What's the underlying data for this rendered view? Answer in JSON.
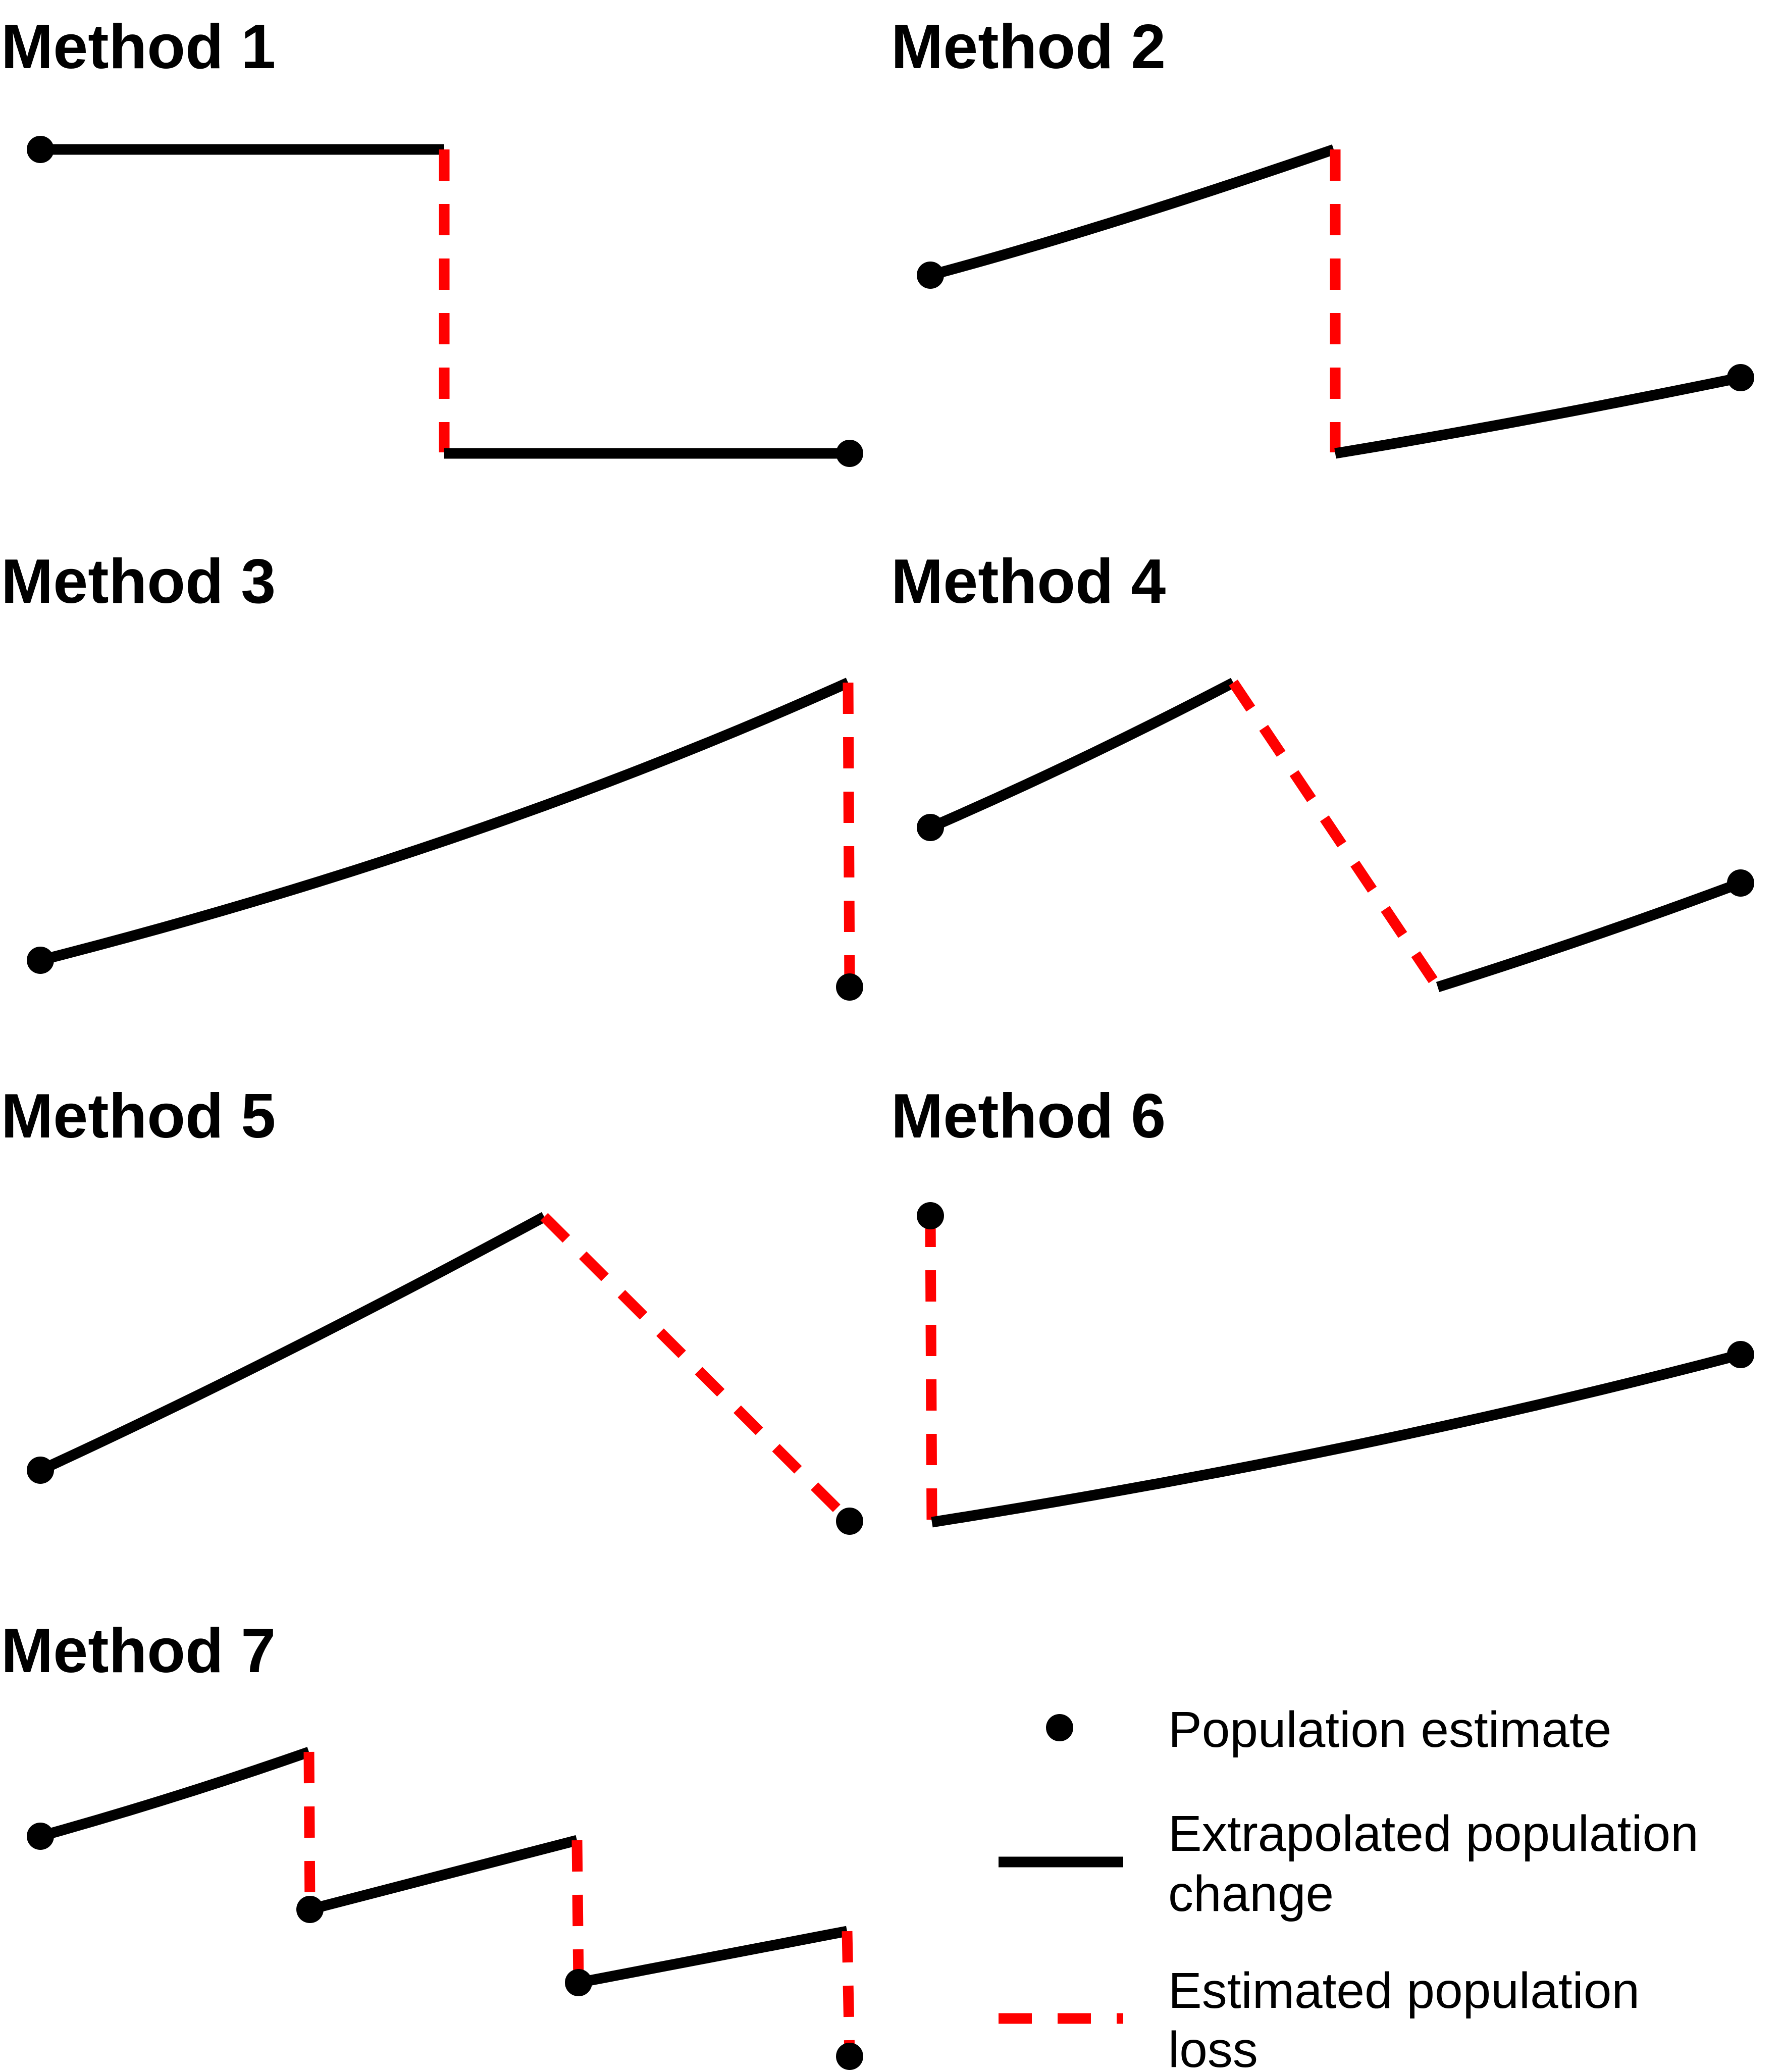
{
  "panels": [
    {
      "title": "Method 1"
    },
    {
      "title": "Method 2"
    },
    {
      "title": "Method 3"
    },
    {
      "title": "Method 4"
    },
    {
      "title": "Method 5"
    },
    {
      "title": "Method 6"
    },
    {
      "title": "Method 7"
    }
  ],
  "legend": {
    "population_estimate": "Population estimate",
    "extrapolated_line1": "Extrapolated population",
    "extrapolated_line2": "change",
    "loss_line1": "Estimated population",
    "loss_line2": "loss"
  },
  "colors": {
    "extrapolated": "#000000",
    "loss": "#ff0000",
    "estimate": "#000000"
  }
}
